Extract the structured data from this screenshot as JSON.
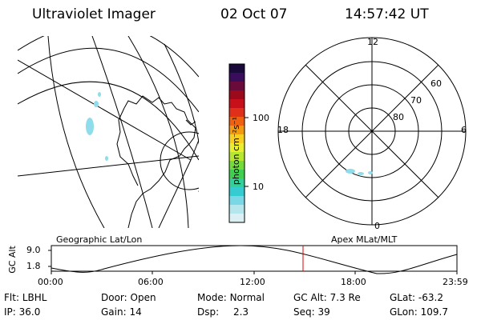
{
  "header": {
    "title": "Ultraviolet Imager",
    "date": "02 Oct 07",
    "time": "14:57:42 UT"
  },
  "colorbar": {
    "unit_label": "photon cm⁻²s⁻¹",
    "ticks": [
      "100",
      "10"
    ],
    "colors": [
      "#1a0a3c",
      "#3a0d5c",
      "#6a0a3a",
      "#9b0a1a",
      "#c8101a",
      "#e0301a",
      "#f06010",
      "#f59a10",
      "#f7cf20",
      "#e9ef30",
      "#b6e830",
      "#74dc3a",
      "#40d050",
      "#35cf9a",
      "#34cbd1",
      "#7ad8e6",
      "#b5e6ee",
      "#dceff3"
    ]
  },
  "maps": {
    "left_caption": "Geographic Lat/Lon",
    "right_caption": "Apex MLat/MLT",
    "polar": {
      "mlt_labels": {
        "top": "12",
        "left": "18",
        "right": "6",
        "bottom": "0"
      },
      "lat_labels": [
        "60",
        "70",
        "80"
      ]
    }
  },
  "altitude_plot": {
    "ylabel": "GC Alt",
    "y_ticks": [
      "9.0",
      "1.8"
    ],
    "x_ticks": [
      "00:00",
      "06:00",
      "12:00",
      "18:00",
      "23:59"
    ],
    "current_marker_color": "#e00000"
  },
  "info": {
    "row1": [
      {
        "label": "Flt:",
        "value": "LBHL"
      },
      {
        "label": "Door:",
        "value": "Open"
      },
      {
        "label": "Mode:",
        "value": "Normal"
      },
      {
        "label": "GC Alt:",
        "value": "7.3 Re"
      },
      {
        "label": "GLat:",
        "value": "-63.2"
      }
    ],
    "row2": [
      {
        "label": "IP:",
        "value": "36.0"
      },
      {
        "label": "Gain:",
        "value": "14"
      },
      {
        "label": "Dsp:",
        "value": "2.3"
      },
      {
        "label": "Seq:",
        "value": "39"
      },
      {
        "label": "GLon:",
        "value": "109.7"
      }
    ]
  }
}
